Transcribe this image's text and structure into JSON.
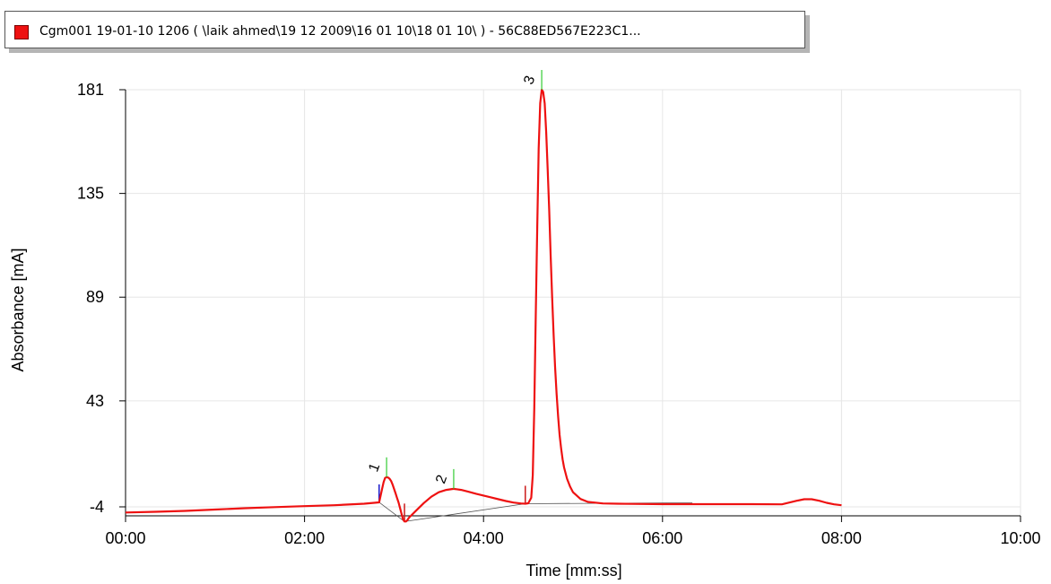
{
  "legend": {
    "text": "Cgm001 19-01-10 1206  ( \\laik ahmed\\19 12 2009\\16 01 10\\18 01 10\\ ) - 56C88ED567E223C1...",
    "swatch_color": "#ee1111"
  },
  "chart_data": {
    "type": "line",
    "xlabel": "Time [mm:ss]",
    "ylabel": "Absorbance [mA]",
    "xlim": [
      0,
      600
    ],
    "ylim": [
      -4,
      181
    ],
    "grid": true,
    "x_ticks": [
      {
        "value": 0,
        "label": "00:00"
      },
      {
        "value": 120,
        "label": "02:00"
      },
      {
        "value": 240,
        "label": "04:00"
      },
      {
        "value": 360,
        "label": "06:00"
      },
      {
        "value": 480,
        "label": "08:00"
      },
      {
        "value": 600,
        "label": "10:00"
      }
    ],
    "y_ticks": [
      {
        "value": -4,
        "label": "-4"
      },
      {
        "value": 43,
        "label": "43"
      },
      {
        "value": 89,
        "label": "89"
      },
      {
        "value": 135,
        "label": "135"
      },
      {
        "value": 181,
        "label": "181"
      }
    ],
    "series": [
      {
        "color": "#ee1111",
        "x": [
          0,
          20,
          40,
          60,
          80,
          100,
          120,
          140,
          160,
          170,
          172,
          173,
          174,
          175,
          176,
          177,
          178,
          179,
          180,
          181,
          182,
          183,
          184,
          185,
          186,
          187,
          188,
          189,
          190,
          195,
          200,
          205,
          210,
          215,
          220,
          225,
          230,
          235,
          240,
          245,
          250,
          255,
          260,
          265,
          268,
          270,
          272,
          273,
          274,
          275,
          276,
          277,
          278,
          279,
          280,
          281,
          282,
          283,
          284,
          285,
          286,
          287,
          288,
          289,
          290,
          291,
          292,
          293,
          294,
          296,
          298,
          300,
          305,
          310,
          320,
          330,
          340,
          360,
          380,
          400,
          420,
          440,
          450,
          455,
          460,
          465,
          470,
          475,
          480
        ],
        "y": [
          -6.5,
          -6.2,
          -5.8,
          -5.2,
          -4.6,
          -4.1,
          -3.7,
          -3.3,
          -2.6,
          -2.0,
          4.0,
          7.0,
          8.8,
          9.2,
          9.0,
          8.5,
          7.5,
          6.0,
          4.0,
          2.0,
          0.0,
          -2.0,
          -4.5,
          -7.0,
          -9.5,
          -10.5,
          -10.5,
          -9.8,
          -8.8,
          -5.5,
          -2.3,
          0.5,
          2.5,
          3.5,
          4.0,
          3.5,
          2.7,
          1.8,
          1.0,
          0.2,
          -0.6,
          -1.4,
          -2.1,
          -2.5,
          -2.6,
          -2.4,
          0.0,
          10.0,
          40.0,
          80.0,
          120.0,
          155.0,
          175.0,
          181.0,
          180.0,
          175.0,
          162.0,
          146.0,
          128.0,
          108.0,
          89.0,
          72.0,
          58.0,
          46.0,
          36.0,
          28.0,
          22.0,
          17.0,
          13.5,
          8.5,
          5.0,
          2.5,
          -0.5,
          -1.8,
          -2.5,
          -2.6,
          -2.7,
          -2.8,
          -2.8,
          -2.8,
          -2.8,
          -2.9,
          -1.3,
          -0.6,
          -0.6,
          -1.3,
          -2.2,
          -2.9,
          -3.3
        ]
      }
    ],
    "baselines": [
      {
        "x": [
          170,
          187
        ],
        "y": [
          -2.0,
          -10.5
        ]
      },
      {
        "x": [
          187,
          268
        ],
        "y": [
          -10.5,
          -2.6
        ]
      },
      {
        "x": [
          268,
          380
        ],
        "y": [
          -2.6,
          -2.2
        ]
      }
    ],
    "markers": [
      {
        "x": 170,
        "kind": "start",
        "color": "#1a1acc"
      },
      {
        "x": 187,
        "kind": "end",
        "color": "#cc1a1a"
      },
      {
        "x": 268,
        "kind": "end",
        "color": "#cc1a1a"
      }
    ],
    "peaks": [
      {
        "label": "1",
        "x": 175,
        "y": 9.2,
        "apex_color": "#33cc33"
      },
      {
        "label": "2",
        "x": 220,
        "y": 4.0,
        "apex_color": "#33cc33"
      },
      {
        "label": "3",
        "x": 279,
        "y": 181.0,
        "apex_color": "#33cc33"
      }
    ]
  }
}
